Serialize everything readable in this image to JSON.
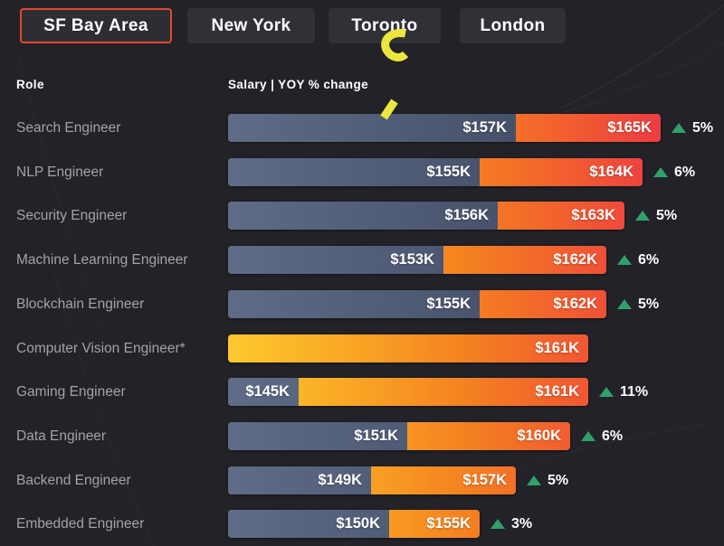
{
  "tabs": [
    {
      "label": "SF Bay Area",
      "selected": true
    },
    {
      "label": "New York",
      "selected": false
    },
    {
      "label": "Toronto",
      "selected": false
    },
    {
      "label": "London",
      "selected": false
    }
  ],
  "headers": {
    "role": "Role",
    "salary": "Salary | YOY % change"
  },
  "colors": {
    "background": "#222228",
    "tab_background": "#303137",
    "selected_tab_border": "#e5462f",
    "bar_gray_start": "#5f6c87",
    "bar_gray_end": "#39425a",
    "bar_gradient_yellow": "#fcc92d",
    "bar_gradient_orange": "#f58220",
    "bar_gradient_red": "#ee3c43",
    "increase_green": "#2fa169",
    "annotation_yellow": "#ece73d",
    "role_text": "#a2a3aa"
  },
  "chart_data": {
    "type": "bar",
    "title": "Salary | YOY % change",
    "orientation": "horizontal",
    "unit": "USD thousands",
    "legend": "gray segment = previous salary, orange gradient segment = current salary, triangle = YOY increase",
    "rows": [
      {
        "role": "Search Engineer",
        "prev_label": "$157K",
        "prev_value": 157,
        "cur_label": "$165K",
        "cur_value": 165,
        "yoy": "5%"
      },
      {
        "role": "NLP Engineer",
        "prev_label": "$155K",
        "prev_value": 155,
        "cur_label": "$164K",
        "cur_value": 164,
        "yoy": "6%"
      },
      {
        "role": "Security Engineer",
        "prev_label": "$156K",
        "prev_value": 156,
        "cur_label": "$163K",
        "cur_value": 163,
        "yoy": "5%"
      },
      {
        "role": "Machine Learning Engineer",
        "prev_label": "$153K",
        "prev_value": 153,
        "cur_label": "$162K",
        "cur_value": 162,
        "yoy": "6%"
      },
      {
        "role": "Blockchain Engineer",
        "prev_label": "$155K",
        "prev_value": 155,
        "cur_label": "$162K",
        "cur_value": 162,
        "yoy": "5%"
      },
      {
        "role": "Computer Vision Engineer*",
        "prev_label": null,
        "prev_value": null,
        "cur_label": "$161K",
        "cur_value": 161,
        "yoy": null
      },
      {
        "role": "Gaming Engineer",
        "prev_label": "$145K",
        "prev_value": 145,
        "cur_label": "$161K",
        "cur_value": 161,
        "yoy": "11%"
      },
      {
        "role": "Data Engineer",
        "prev_label": "$151K",
        "prev_value": 151,
        "cur_label": "$160K",
        "cur_value": 160,
        "yoy": "6%"
      },
      {
        "role": "Backend Engineer",
        "prev_label": "$149K",
        "prev_value": 149,
        "cur_label": "$157K",
        "cur_value": 157,
        "yoy": "5%"
      },
      {
        "role": "Embedded Engineer",
        "prev_label": "$150K",
        "prev_value": 150,
        "cur_label": "$155K",
        "cur_value": 155,
        "yoy": "3%"
      }
    ]
  }
}
